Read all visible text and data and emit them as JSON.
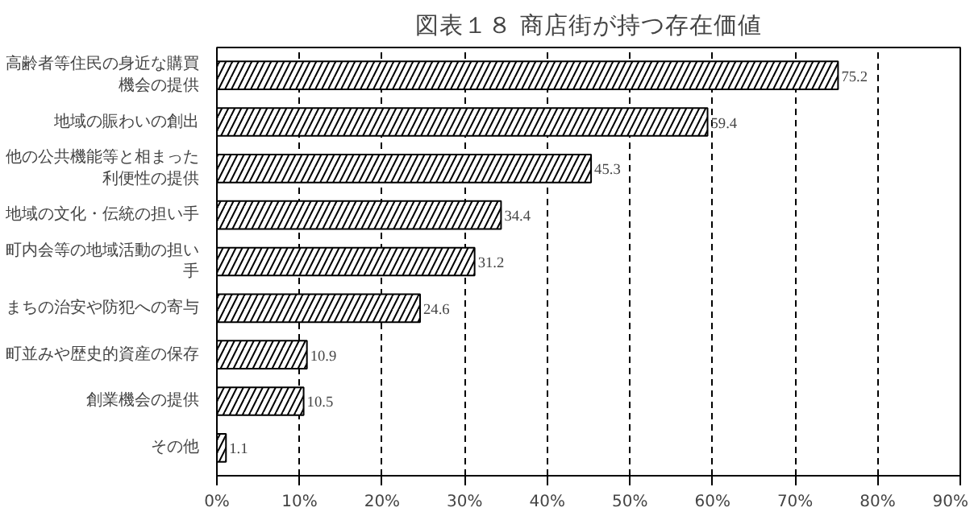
{
  "chart_data": {
    "type": "bar",
    "orientation": "horizontal",
    "title": "図表１８ 商店街が持つ存在価値",
    "categories": [
      "高齢者等住民の身近な購買機会の提供",
      "地域の賑わいの創出",
      "他の公共機能等と相まった利便性の提供",
      "地域の文化・伝統の担い手",
      "町内会等の地域活動の担い手",
      "まちの治安や防犯への寄与",
      "町並みや歴史的資産の保存",
      "創業機会の提供",
      "その他"
    ],
    "values": [
      75.2,
      59.4,
      45.3,
      34.4,
      31.2,
      24.6,
      10.9,
      10.5,
      1.1
    ],
    "color": "#ffffff",
    "data_labels": true,
    "grid": "x",
    "xlim": [
      0,
      90
    ],
    "xticks": [
      {
        "value": 0,
        "label": "0%"
      },
      {
        "value": 10,
        "label": "10%"
      },
      {
        "value": 20,
        "label": "20%"
      },
      {
        "value": 30,
        "label": "30%"
      },
      {
        "value": 40,
        "label": "40%"
      },
      {
        "value": 50,
        "label": "50%"
      },
      {
        "value": 60,
        "label": "60%"
      },
      {
        "value": 70,
        "label": "70%"
      },
      {
        "value": 80,
        "label": "80%"
      },
      {
        "value": 90,
        "label": "90%"
      }
    ]
  }
}
